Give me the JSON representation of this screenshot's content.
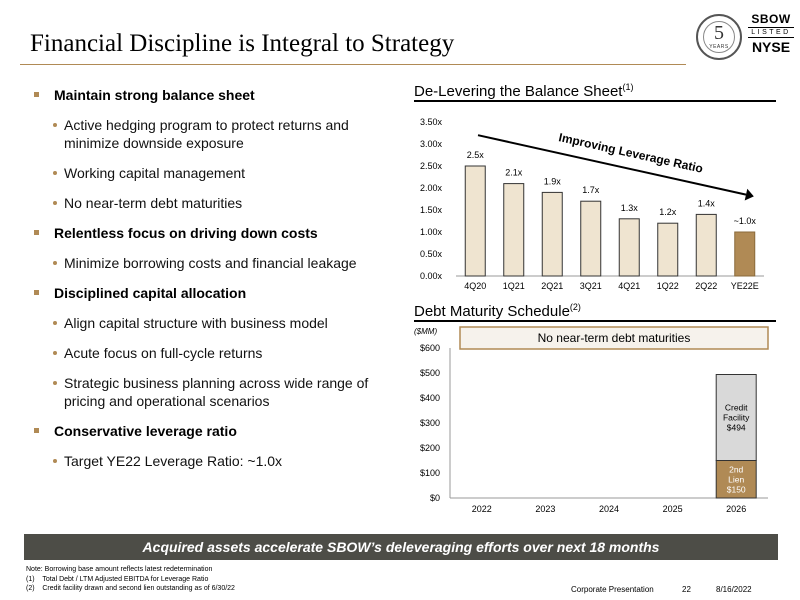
{
  "title": "Financial Discipline is Integral to Strategy",
  "logo": {
    "badge_number": "5",
    "badge_text": "YEARS",
    "ticker": "SBOW",
    "listed": "LISTED",
    "exchange": "NYSE"
  },
  "bullets": [
    {
      "level": 1,
      "text": "Maintain strong balance sheet"
    },
    {
      "level": 2,
      "text": "Active hedging program to protect returns and minimize downside exposure"
    },
    {
      "level": 2,
      "text": "Working capital management"
    },
    {
      "level": 2,
      "text": "No near-term debt maturities"
    },
    {
      "level": 1,
      "text": "Relentless focus on driving down costs"
    },
    {
      "level": 2,
      "text": "Minimize borrowing costs and financial leakage"
    },
    {
      "level": 1,
      "text": "Disciplined capital allocation"
    },
    {
      "level": 2,
      "text": "Align capital structure with business model"
    },
    {
      "level": 2,
      "text": "Acute focus on full-cycle returns"
    },
    {
      "level": 2,
      "text": "Strategic business planning across wide range of pricing and operational scenarios"
    },
    {
      "level": 1,
      "text": "Conservative leverage ratio"
    },
    {
      "level": 2,
      "text": "Target YE22 Leverage Ratio: ~1.0x"
    }
  ],
  "leverage_heading": {
    "text": "De-Levering the Balance Sheet",
    "sup": "(1)"
  },
  "maturity_heading": {
    "text": "Debt Maturity Schedule",
    "sup": "(2)"
  },
  "banner": "Acquired assets accelerate SBOW’s deleveraging efforts over next 18 months",
  "notes": [
    "Note: Borrowing base amount reflects latest redetermination",
    "(1)    Total Debt /  LTM Adjusted EBITDA for Leverage Ratio",
    "(2)    Credit facility drawn and second lien outstanding as of 6/30/22"
  ],
  "footer": {
    "label": "Corporate Presentation",
    "page": "22",
    "date": "8/16/2022"
  },
  "colors": {
    "accent": "#b08a55",
    "bar_light": "#efe4d0",
    "bar_dark": "#b08a55",
    "credit_gray": "#d9d9d9",
    "banner": "#4d4d47"
  },
  "chart_data": [
    {
      "type": "bar",
      "categories": [
        "4Q20",
        "1Q21",
        "2Q21",
        "3Q21",
        "4Q21",
        "1Q22",
        "2Q22",
        "YE22E"
      ],
      "values": [
        2.5,
        2.1,
        1.9,
        1.7,
        1.3,
        1.2,
        1.4,
        1.0
      ],
      "data_labels": [
        "2.5x",
        "2.1x",
        "1.9x",
        "1.7x",
        "1.3x",
        "1.2x",
        "1.4x",
        "~1.0x"
      ],
      "y_ticks": [
        "0.00x",
        "0.50x",
        "1.00x",
        "1.50x",
        "2.00x",
        "2.50x",
        "3.00x",
        "3.50x"
      ],
      "ylim": [
        0,
        3.5
      ],
      "annotation": "Improving Leverage Ratio",
      "grid": false
    },
    {
      "type": "bar",
      "stacked": true,
      "unit_label": "($MM)",
      "categories": [
        "2022",
        "2023",
        "2024",
        "2025",
        "2026"
      ],
      "y_ticks": [
        "$0",
        "$100",
        "$200",
        "$300",
        "$400",
        "$500",
        "$600"
      ],
      "ylim": [
        0,
        600
      ],
      "series": [
        {
          "name": "2nd Lien",
          "values": [
            0,
            0,
            0,
            0,
            150
          ],
          "label_lines": [
            "2nd",
            "Lien",
            "$150"
          ]
        },
        {
          "name": "Credit Facility",
          "values": [
            0,
            0,
            0,
            0,
            344
          ],
          "label_lines": [
            "Credit",
            "Facility",
            "$494"
          ]
        }
      ],
      "callout": "No near-term debt maturities",
      "grid": false
    }
  ]
}
